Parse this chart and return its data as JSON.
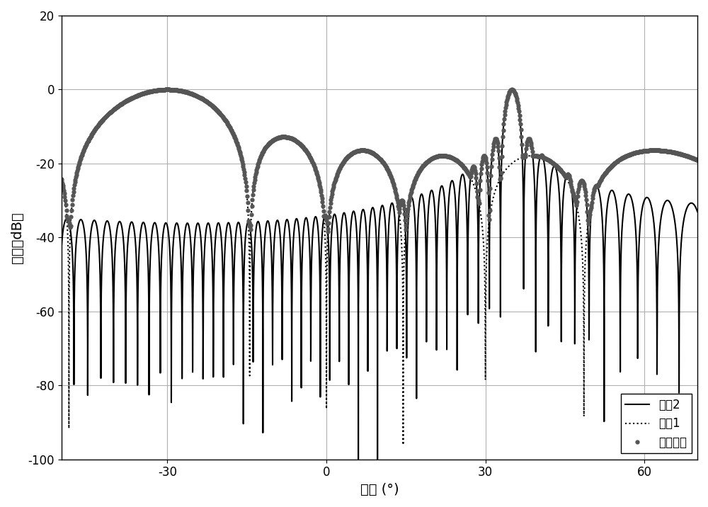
{
  "title": "",
  "xlabel": "角度 (°)",
  "ylabel": "增益（dB）",
  "xlim": [
    -50,
    70
  ],
  "ylim": [
    -100,
    20
  ],
  "xticks": [
    -30,
    0,
    30,
    60
  ],
  "yticks": [
    -100,
    -80,
    -60,
    -40,
    -20,
    0,
    20
  ],
  "legend_labels": [
    "波形1",
    "波形2",
    "合成波形"
  ],
  "grid_color": "#b0b0b0",
  "background_color": "#ffffff",
  "Nt": 8,
  "Nr": 8,
  "dr_lam": 0.5,
  "theta1_deg": -30,
  "theta2_deg": 35,
  "clip_bottom": -100
}
